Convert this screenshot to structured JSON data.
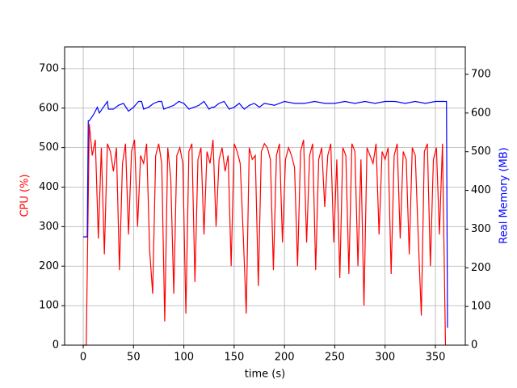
{
  "chart_data": {
    "type": "line",
    "xlabel": "time (s)",
    "ylabel": "CPU (%)",
    "y2label": "Real Memory (MB)",
    "ylabel_color": "red",
    "y2label_color": "blue",
    "xlim": [
      -18.5,
      379.7
    ],
    "xticks": [
      0,
      50,
      100,
      150,
      200,
      250,
      300,
      350
    ],
    "ylim": [
      0,
      755
    ],
    "yticks": [
      0,
      100,
      200,
      300,
      400,
      500,
      600,
      700
    ],
    "y2lim": [
      0,
      771
    ],
    "y2ticks": [
      0,
      100,
      200,
      300,
      400,
      500,
      600,
      700
    ],
    "grid": true,
    "series": [
      {
        "color": "red",
        "x": [
          0,
          3,
          6,
          9,
          12,
          15,
          18,
          21,
          24,
          27,
          30,
          33,
          36,
          39,
          42,
          45,
          48,
          51,
          54,
          57,
          60,
          63,
          66,
          69,
          72,
          75,
          78,
          81,
          84,
          87,
          90,
          93,
          96,
          99,
          102,
          105,
          108,
          111,
          114,
          117,
          120,
          123,
          126,
          129,
          132,
          135,
          138,
          141,
          144,
          147,
          150,
          153,
          156,
          159,
          162,
          165,
          168,
          171,
          174,
          177,
          180,
          183,
          186,
          189,
          192,
          195,
          198,
          201,
          204,
          207,
          210,
          213,
          216,
          219,
          222,
          225,
          228,
          231,
          234,
          237,
          240,
          243,
          246,
          249,
          252,
          255,
          258,
          261,
          264,
          267,
          270,
          273,
          276,
          279,
          282,
          285,
          288,
          291,
          294,
          297,
          300,
          303,
          306,
          309,
          312,
          315,
          318,
          321,
          324,
          327,
          330,
          333,
          336,
          339,
          342,
          345,
          348,
          351,
          354,
          357,
          360
        ],
        "values": [
          0,
          0,
          560,
          480,
          520,
          270,
          500,
          230,
          510,
          490,
          440,
          500,
          190,
          460,
          510,
          280,
          490,
          520,
          300,
          480,
          460,
          510,
          240,
          130,
          480,
          510,
          460,
          60,
          500,
          420,
          130,
          480,
          500,
          460,
          80,
          490,
          510,
          160,
          470,
          500,
          280,
          490,
          460,
          520,
          300,
          470,
          500,
          440,
          480,
          200,
          510,
          490,
          460,
          280,
          80,
          500,
          470,
          480,
          150,
          490,
          510,
          500,
          470,
          190,
          480,
          510,
          260,
          470,
          500,
          480,
          450,
          200,
          490,
          520,
          260,
          480,
          510,
          190,
          470,
          500,
          350,
          480,
          510,
          260,
          470,
          170,
          500,
          480,
          180,
          510,
          490,
          200,
          470,
          100,
          500,
          480,
          460,
          510,
          280,
          490,
          470,
          500,
          180,
          480,
          510,
          270,
          490,
          470,
          230,
          500,
          480,
          270,
          75,
          490,
          510,
          200,
          470,
          500,
          280,
          510,
          0
        ]
      },
      {
        "color": "blue",
        "axis": "y2",
        "x": [
          0,
          4,
          5,
          6,
          10,
          14,
          16,
          20,
          24,
          25,
          30,
          35,
          40,
          45,
          50,
          55,
          58,
          60,
          65,
          70,
          75,
          78,
          80,
          85,
          90,
          95,
          100,
          105,
          110,
          115,
          120,
          125,
          128,
          130,
          135,
          140,
          145,
          150,
          155,
          160,
          165,
          170,
          175,
          180,
          190,
          200,
          210,
          220,
          230,
          240,
          250,
          260,
          270,
          280,
          290,
          300,
          310,
          320,
          330,
          340,
          350,
          355,
          360,
          361,
          362
        ],
        "values": [
          280,
          280,
          580,
          580,
          595,
          615,
          600,
          615,
          630,
          610,
          610,
          620,
          625,
          605,
          615,
          630,
          630,
          610,
          615,
          625,
          630,
          630,
          610,
          615,
          620,
          630,
          625,
          610,
          615,
          620,
          630,
          610,
          615,
          615,
          625,
          630,
          610,
          615,
          625,
          610,
          620,
          625,
          615,
          625,
          620,
          630,
          625,
          625,
          630,
          625,
          625,
          630,
          625,
          630,
          625,
          630,
          630,
          625,
          630,
          625,
          630,
          630,
          630,
          630,
          45
        ]
      }
    ]
  }
}
